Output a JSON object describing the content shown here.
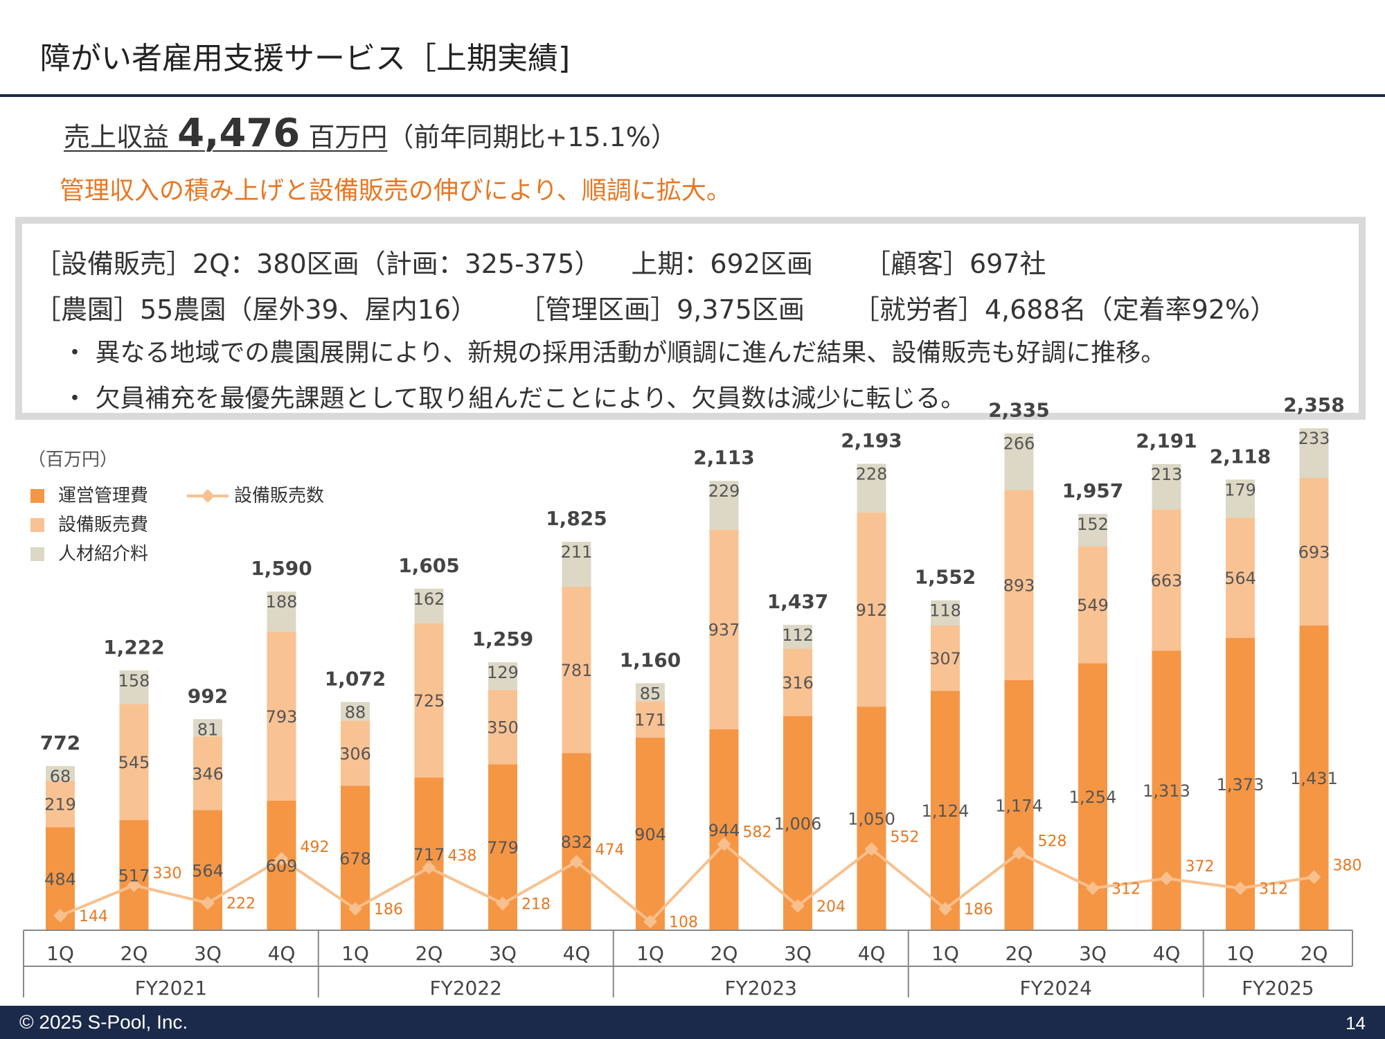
{
  "title": "障がい者雇用支援サービス［上期実績]",
  "headline": {
    "label": "売上収益",
    "value": "4,476",
    "unit": "百万円",
    "growth": "（前年同期比+15.1%）"
  },
  "subline": "管理収入の積み上げと設備販売の伸びにより、順調に拡大。",
  "box": {
    "line1": [
      "［設備販売］2Q：380区画（計画：325-375）",
      "上期：692区画",
      "［顧客］697社"
    ],
    "line2": [
      "［農園］55農園（屋外39、屋内16）",
      "［管理区画］9,375区画",
      "［就労者］4,688名（定着率92%）"
    ],
    "bullets": [
      "・ 異なる地域での農園展開により、新規の採用活動が順調に進んだ結果、設備販売も好調に推移。",
      "・ 欠員補充を最優先課題として取り組んだことにより、欠員数は減少に転じる。"
    ]
  },
  "footer": {
    "copyright": "© 2025  S-Pool, Inc.",
    "page": "14"
  },
  "colors": {
    "orange": "#f59645",
    "light": "#f9c293",
    "beige": "#dcd8c5",
    "line": "#f8c08e",
    "accent": "#e87722"
  },
  "chart_data": {
    "type": "bar",
    "stacked": true,
    "unit_label": "（百万円）",
    "categories": [
      "1Q",
      "2Q",
      "3Q",
      "4Q",
      "1Q",
      "2Q",
      "3Q",
      "4Q",
      "1Q",
      "2Q",
      "3Q",
      "4Q",
      "1Q",
      "2Q",
      "3Q",
      "4Q",
      "1Q",
      "2Q"
    ],
    "groups": [
      {
        "label": "FY2021",
        "count": 4
      },
      {
        "label": "FY2022",
        "count": 4
      },
      {
        "label": "FY2023",
        "count": 4
      },
      {
        "label": "FY2024",
        "count": 4
      },
      {
        "label": "FY2025",
        "count": 2
      }
    ],
    "series": [
      {
        "name": "運営管理費",
        "values": [
          484,
          517,
          564,
          609,
          678,
          717,
          779,
          832,
          904,
          944,
          1006,
          1050,
          1124,
          1174,
          1254,
          1313,
          1373,
          1431
        ]
      },
      {
        "name": "設備販売費",
        "values": [
          219,
          545,
          346,
          793,
          306,
          725,
          350,
          781,
          171,
          937,
          316,
          912,
          307,
          893,
          549,
          663,
          564,
          693
        ]
      },
      {
        "name": "人材紹介料",
        "values": [
          68,
          158,
          81,
          188,
          88,
          162,
          129,
          211,
          85,
          229,
          112,
          228,
          118,
          266,
          152,
          213,
          179,
          233
        ]
      }
    ],
    "totals": [
      "772",
      "1,222",
      "992",
      "1,590",
      "1,072",
      "1,605",
      "1,259",
      "1,825",
      "1,160",
      "2,113",
      "1,437",
      "2,193",
      "1,552",
      "2,335",
      "1,957",
      "2,191",
      "2,118",
      "2,358"
    ],
    "line_series": {
      "name": "設備販売数",
      "values": [
        144,
        330,
        222,
        492,
        186,
        438,
        218,
        474,
        108,
        582,
        204,
        552,
        186,
        528,
        312,
        372,
        312,
        380
      ]
    },
    "ylim": [
      0,
      2500
    ],
    "legend_position": "top-left"
  }
}
